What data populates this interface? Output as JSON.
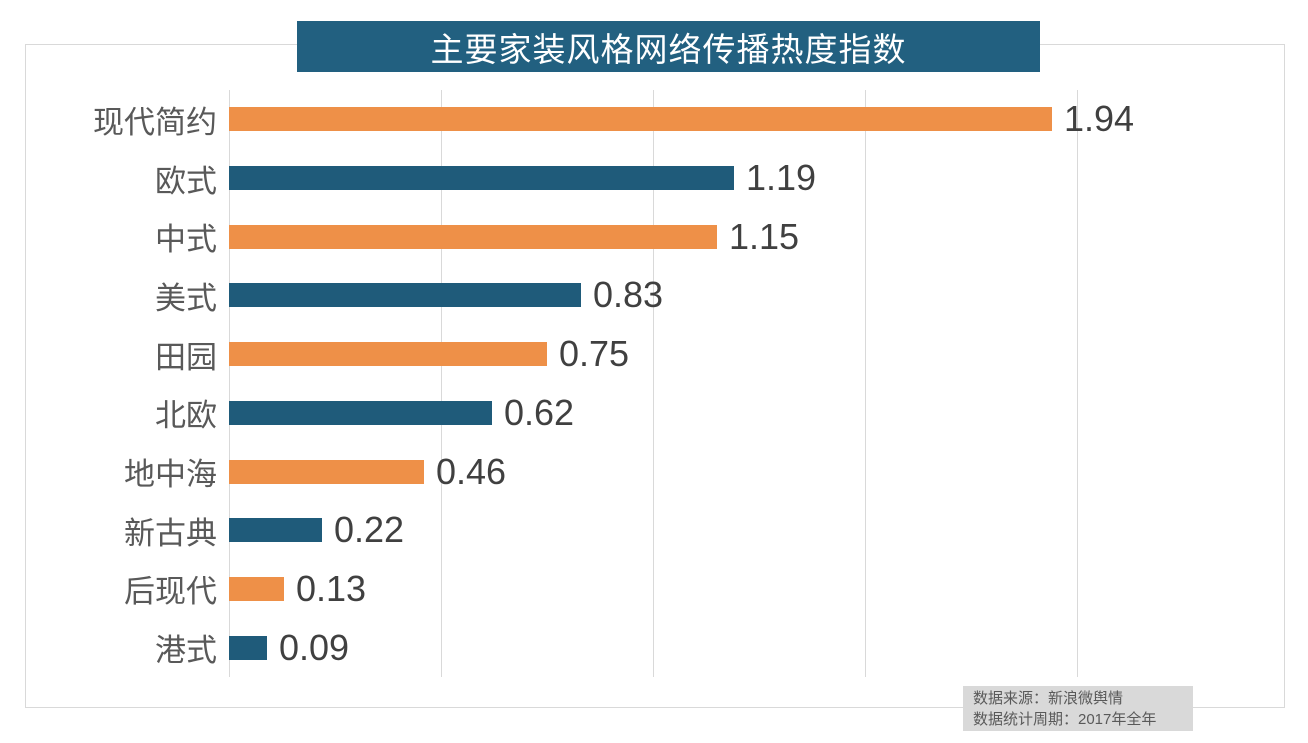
{
  "title": "主要家装风格网络传播热度指数",
  "source_note": {
    "line1": "数据来源：新浪微舆情",
    "line2": "数据统计周期：2017年全年"
  },
  "colors": {
    "banner_background": "#226080",
    "bar_orange": "#EE9048",
    "bar_teal": "#1F5B7A",
    "gridline": "#D9D9D9",
    "frame_border": "#D9D9D9",
    "category_label": "#595959",
    "value_label": "#404040",
    "source_background": "#D9D9D9",
    "title_text": "#FFFFFF"
  },
  "chart_data": {
    "type": "bar",
    "orientation": "horizontal",
    "title": "主要家装风格网络传播热度指数",
    "categories": [
      "现代简约",
      "欧式",
      "中式",
      "美式",
      "田园",
      "北欧",
      "地中海",
      "新古典",
      "后现代",
      "港式"
    ],
    "values": [
      1.94,
      1.19,
      1.15,
      0.83,
      0.75,
      0.62,
      0.46,
      0.22,
      0.13,
      0.09
    ],
    "value_labels": [
      "1.94",
      "1.19",
      "1.15",
      "0.83",
      "0.75",
      "0.62",
      "0.46",
      "0.22",
      "0.13",
      "0.09"
    ],
    "xlabel": "",
    "ylabel": "",
    "xlim": [
      0,
      2.49
    ],
    "gridlines_x": [
      0,
      0.5,
      1.0,
      1.5,
      2.0
    ],
    "grid": "vertical-only",
    "legend": "none",
    "bar_color_pattern": "alternating",
    "bar_colors_alternating": [
      "#EE9048",
      "#1F5B7A"
    ],
    "data_labels": "outside-end",
    "source": "新浪微舆情",
    "period": "2017年全年"
  }
}
